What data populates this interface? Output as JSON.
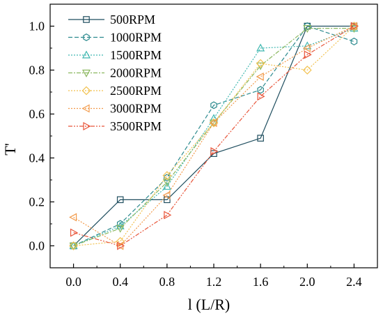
{
  "chart_data": {
    "type": "line",
    "title": "",
    "xlabel": "l (L/R)",
    "ylabel": "T'",
    "xlim": [
      -0.2,
      2.6
    ],
    "ylim": [
      -0.1,
      1.1
    ],
    "x": [
      0.0,
      0.4,
      0.8,
      1.2,
      1.6,
      2.0,
      2.4
    ],
    "x_ticks": [
      "0.0",
      "0.4",
      "0.8",
      "1.2",
      "1.6",
      "2.0",
      "2.4"
    ],
    "y_ticks": [
      "0.0",
      "0.2",
      "0.4",
      "0.6",
      "0.8",
      "1.0"
    ],
    "grid": false,
    "legend_position": "top-left",
    "series": [
      {
        "name": "500RPM",
        "color": "#1f4e5f",
        "marker": "square",
        "dash": "solid",
        "values": [
          0.0,
          0.21,
          0.21,
          0.42,
          0.49,
          1.0,
          1.0
        ]
      },
      {
        "name": "1000RPM",
        "color": "#2b8a8e",
        "marker": "hexagon",
        "dash": "dashed",
        "values": [
          0.0,
          0.1,
          0.31,
          0.64,
          0.71,
          1.0,
          0.93
        ]
      },
      {
        "name": "1500RPM",
        "color": "#3fb7b0",
        "marker": "triangle-up",
        "dash": "dotted",
        "values": [
          0.0,
          0.09,
          0.27,
          0.58,
          0.9,
          0.91,
          0.99
        ]
      },
      {
        "name": "2000RPM",
        "color": "#8cb860",
        "marker": "triangle-down",
        "dash": "dashdot",
        "values": [
          0.0,
          0.08,
          0.29,
          0.56,
          0.82,
          0.99,
          0.99
        ]
      },
      {
        "name": "2500RPM",
        "color": "#f2c14e",
        "marker": "diamond",
        "dash": "dotted",
        "values": [
          0.0,
          0.02,
          0.32,
          0.56,
          0.83,
          0.8,
          1.0
        ]
      },
      {
        "name": "3000RPM",
        "color": "#f29a4a",
        "marker": "triangle-left",
        "dash": "dotted",
        "values": [
          0.13,
          0.0,
          0.23,
          0.56,
          0.77,
          0.9,
          1.0
        ]
      },
      {
        "name": "3500RPM",
        "color": "#e8553a",
        "marker": "triangle-right",
        "dash": "dashdotdot",
        "values": [
          0.06,
          0.0,
          0.14,
          0.43,
          0.68,
          0.87,
          1.0
        ]
      }
    ]
  }
}
